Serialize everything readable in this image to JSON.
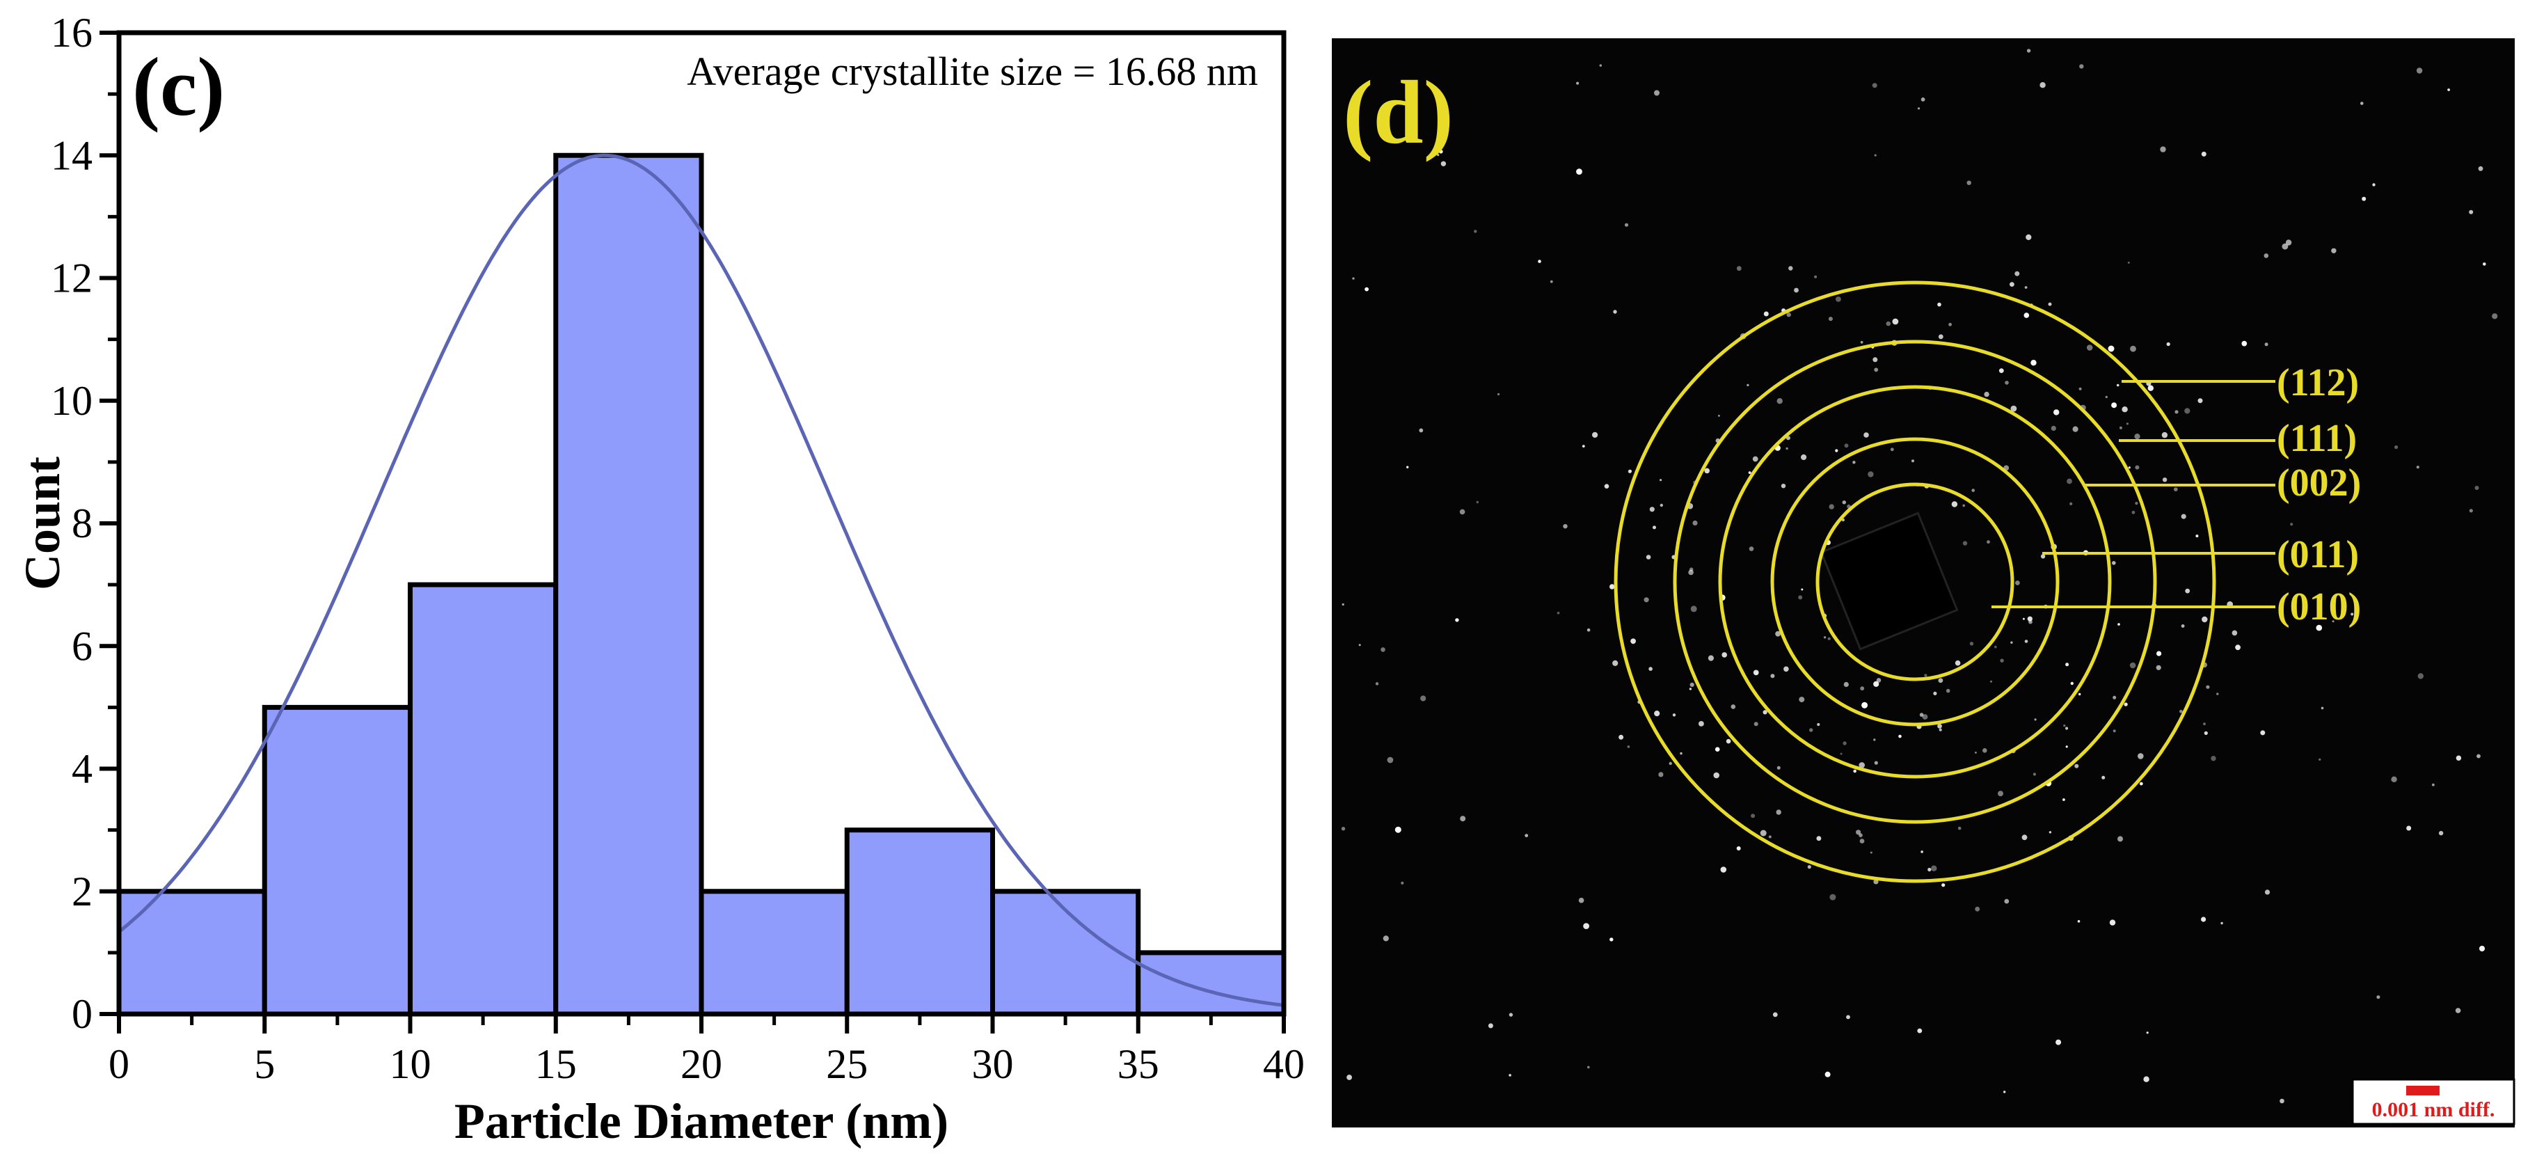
{
  "chart_data": {
    "type": "bar",
    "panel_label": "(c)",
    "annotation": "Average crystallite size = 16.68 nm",
    "xlabel": "Particle Diameter (nm)",
    "ylabel": "Count",
    "xlim": [
      0,
      40
    ],
    "ylim": [
      0,
      16
    ],
    "x_ticks": [
      "0",
      "5",
      "10",
      "15",
      "20",
      "25",
      "30",
      "35",
      "40"
    ],
    "y_ticks": [
      "0",
      "2",
      "4",
      "6",
      "8",
      "10",
      "12",
      "14",
      "16"
    ],
    "bins": [
      {
        "start": 0,
        "end": 5,
        "count": 2
      },
      {
        "start": 5,
        "end": 10,
        "count": 5
      },
      {
        "start": 10,
        "end": 15,
        "count": 7
      },
      {
        "start": 15,
        "end": 20,
        "count": 14
      },
      {
        "start": 20,
        "end": 25,
        "count": 2
      },
      {
        "start": 25,
        "end": 30,
        "count": 3
      },
      {
        "start": 30,
        "end": 35,
        "count": 2
      },
      {
        "start": 35,
        "end": 40,
        "count": 1
      }
    ],
    "fit_curve": {
      "type": "gaussian",
      "mean": 16.68,
      "peak": 14,
      "sigma": 7.7
    },
    "colors": {
      "bar_fill": "#8f9cfb",
      "bar_edge": "#000000",
      "curve": "#5b65b5"
    }
  },
  "diffraction_panel": {
    "panel_label": "(d)",
    "rings": [
      {
        "label": "(112)"
      },
      {
        "label": "(111)"
      },
      {
        "label": "(002)"
      },
      {
        "label": "(011)"
      },
      {
        "label": "(010)"
      }
    ],
    "scale_bar_label": "0.001 nm diff.",
    "colors": {
      "background": "#050505",
      "ring": "#e8dc28",
      "label": "#e8dc28",
      "scale_bar": "#e01b1b"
    }
  }
}
